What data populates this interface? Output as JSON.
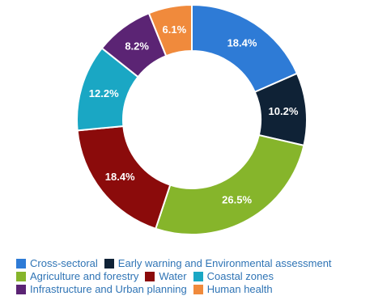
{
  "chart_data": {
    "type": "pie",
    "style": "donut",
    "unit": "%",
    "slices": [
      {
        "label": "Cross-sectoral",
        "value": 18.4,
        "display": "18.4%",
        "color": "#2e7bd6"
      },
      {
        "label": "Early warning and Environmental assessment",
        "value": 10.2,
        "display": "10.2%",
        "color": "#0f2236"
      },
      {
        "label": "Agriculture and forestry",
        "value": 26.5,
        "display": "26.5%",
        "color": "#86b52b"
      },
      {
        "label": "Water",
        "value": 18.4,
        "display": "18.4%",
        "color": "#8b0b0b"
      },
      {
        "label": "Coastal zones",
        "value": 12.2,
        "display": "12.2%",
        "color": "#1aa7c4"
      },
      {
        "label": "Infrastructure and Urban planning",
        "value": 8.2,
        "display": "8.2%",
        "color": "#5b2474"
      },
      {
        "label": "Human health",
        "value": 6.1,
        "display": "6.1%",
        "color": "#f08a3c"
      }
    ],
    "legend_position": "bottom",
    "legend_text_color": "#2f74b5"
  }
}
